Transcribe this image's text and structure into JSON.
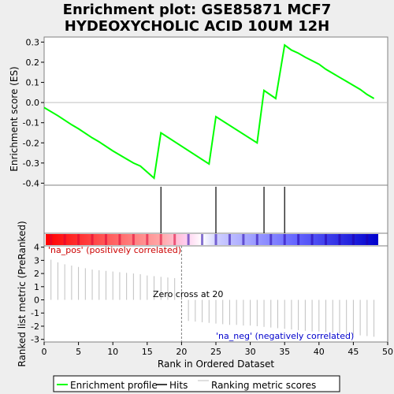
{
  "chart_data": {
    "type": "line",
    "title_lines": [
      "Enrichment plot: GSE85871 MCF7",
      "HYDEOXYCHOLIC ACID 10UM 12H"
    ],
    "ylabel_top": "Enrichment score (ES)",
    "ylabel_bottom": "Ranked list metric (PreRanked)",
    "xlabel": "Rank in Ordered Dataset",
    "xlim": [
      0,
      50
    ],
    "ylim_es": [
      -0.41,
      0.325
    ],
    "ylim_metric": [
      -3.2,
      4.1
    ],
    "x_ticks": [
      0,
      5,
      10,
      15,
      20,
      25,
      30,
      35,
      40,
      45,
      50
    ],
    "x_tick_labels": [
      "0",
      "5",
      "10",
      "15",
      "20",
      "25",
      "30",
      "35",
      "40",
      "45",
      "50"
    ],
    "es_ticks": [
      -0.4,
      -0.3,
      -0.2,
      -0.1,
      0.0,
      0.1,
      0.2,
      0.3
    ],
    "es_tick_labels": [
      "-0.4",
      "-0.3",
      "-0.2",
      "-0.1",
      "0.0",
      "0.1",
      "0.2",
      "0.3"
    ],
    "metric_ticks": [
      -3,
      -2,
      -1,
      0,
      1,
      2,
      3,
      4
    ],
    "metric_tick_labels": [
      "-3",
      "-2",
      "-1",
      "0",
      "1",
      "2",
      "3",
      "4"
    ],
    "enrichment_profile": {
      "name": "Enrichment profile",
      "color": "#00ff00",
      "x": [
        0,
        2,
        4,
        5,
        7,
        8,
        10,
        12,
        13,
        14,
        16,
        17,
        24,
        25,
        31,
        32,
        33.7,
        35,
        36,
        37,
        38,
        40,
        41,
        42,
        43,
        44,
        45,
        46,
        47,
        48
      ],
      "y": [
        -0.025,
        -0.065,
        -0.11,
        -0.13,
        -0.175,
        -0.195,
        -0.24,
        -0.28,
        -0.3,
        -0.315,
        -0.375,
        -0.15,
        -0.305,
        -0.07,
        -0.2,
        0.06,
        0.02,
        0.285,
        0.26,
        0.245,
        0.225,
        0.19,
        0.165,
        0.145,
        0.125,
        0.105,
        0.085,
        0.065,
        0.04,
        0.02
      ]
    },
    "hits": {
      "name": "Hits",
      "color": "#000000",
      "x": [
        17,
        25,
        32,
        35
      ]
    },
    "ranking_metric": {
      "name": "Ranking metric scores",
      "color": "#c0c0c0",
      "x": [
        1,
        2,
        3,
        4,
        5,
        6,
        7,
        8,
        9,
        10,
        11,
        12,
        13,
        14,
        15,
        16,
        17,
        18,
        19,
        20,
        21,
        22,
        23,
        24,
        25,
        26,
        27,
        28,
        29,
        30,
        31,
        32,
        33,
        34,
        35,
        36,
        37,
        38,
        39,
        40,
        41,
        42,
        43,
        44,
        45,
        46,
        47,
        48
      ],
      "y": [
        3.05,
        2.85,
        2.7,
        2.6,
        2.5,
        2.4,
        2.3,
        2.25,
        2.2,
        2.15,
        2.1,
        2.05,
        2.0,
        1.95,
        1.85,
        1.8,
        1.75,
        1.7,
        1.65,
        0.05,
        -1.6,
        -1.65,
        -1.7,
        -1.75,
        -1.8,
        -1.85,
        -1.9,
        -1.9,
        -1.95,
        -1.95,
        -2.0,
        -2.05,
        -2.1,
        -2.15,
        -2.2,
        -2.25,
        -2.3,
        -2.35,
        -2.4,
        -2.4,
        -2.45,
        -2.5,
        -2.55,
        -2.6,
        -2.65,
        -2.7,
        -2.75,
        -2.8
      ]
    },
    "annotations": {
      "pos_label": "'na_pos' (positively correlated)",
      "neg_label": "'na_neg' (negatively correlated)",
      "zero_cross": "Zero cross at 20",
      "zero_cross_x": 20,
      "pos_color": "#cc0000",
      "neg_color": "#0000cc"
    },
    "legend_items": [
      {
        "label": "Enrichment profile",
        "color": "#00ff00"
      },
      {
        "label": "Hits",
        "color": "#000000"
      },
      {
        "label": "Ranking metric scores",
        "color": "#c0c0c0"
      }
    ],
    "legend_placement": "bottom",
    "grid": false
  }
}
